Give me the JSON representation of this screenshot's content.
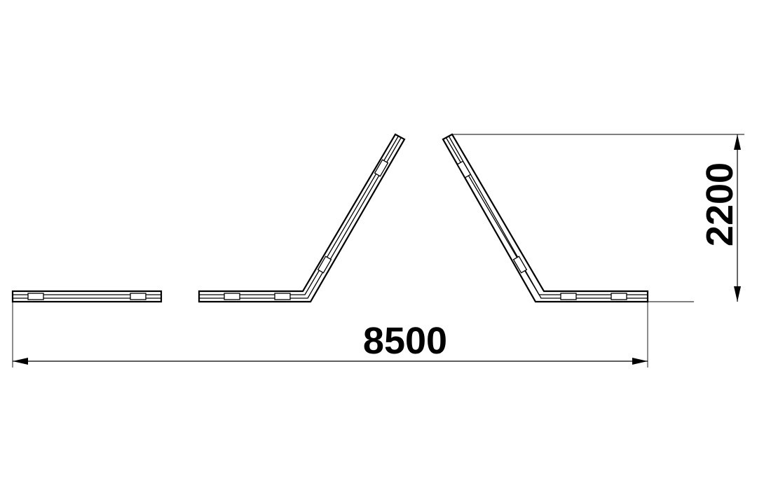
{
  "drawing": {
    "dimensions": {
      "overall_width_label": "8500",
      "overall_height_label": "2200"
    },
    "line_color": "#000000",
    "background_color": "#ffffff"
  }
}
